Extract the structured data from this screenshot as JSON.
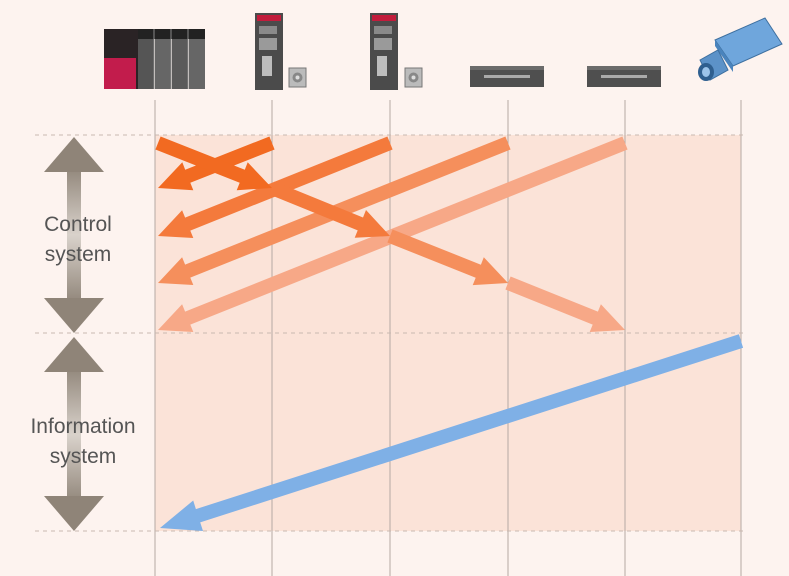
{
  "labels": {
    "control_line1": "Control",
    "control_line2": "system",
    "info_line1": "Information",
    "info_line2": "system"
  },
  "colors": {
    "background": "#fdf3ef",
    "band": "#fbe3d8",
    "grid_line": "#aaaaaa",
    "dashed_line": "#c9b8b0",
    "range_arrow": "#8f8478",
    "control_arrow_1": "#f26a21",
    "control_arrow_2": "#f47a3c",
    "control_arrow_3": "#f58f5c",
    "control_arrow_4": "#f7a887",
    "info_arrow": "#7fb0e6"
  },
  "devices": [
    {
      "name": "plc-device",
      "icon": "plc-icon"
    },
    {
      "name": "servo-amplifier-1",
      "icon": "servo-amplifier-icon"
    },
    {
      "name": "servo-amplifier-2",
      "icon": "servo-amplifier-icon"
    },
    {
      "name": "inverter-1",
      "icon": "inverter-icon"
    },
    {
      "name": "inverter-2",
      "icon": "inverter-icon"
    },
    {
      "name": "camera",
      "icon": "camera-icon"
    }
  ]
}
